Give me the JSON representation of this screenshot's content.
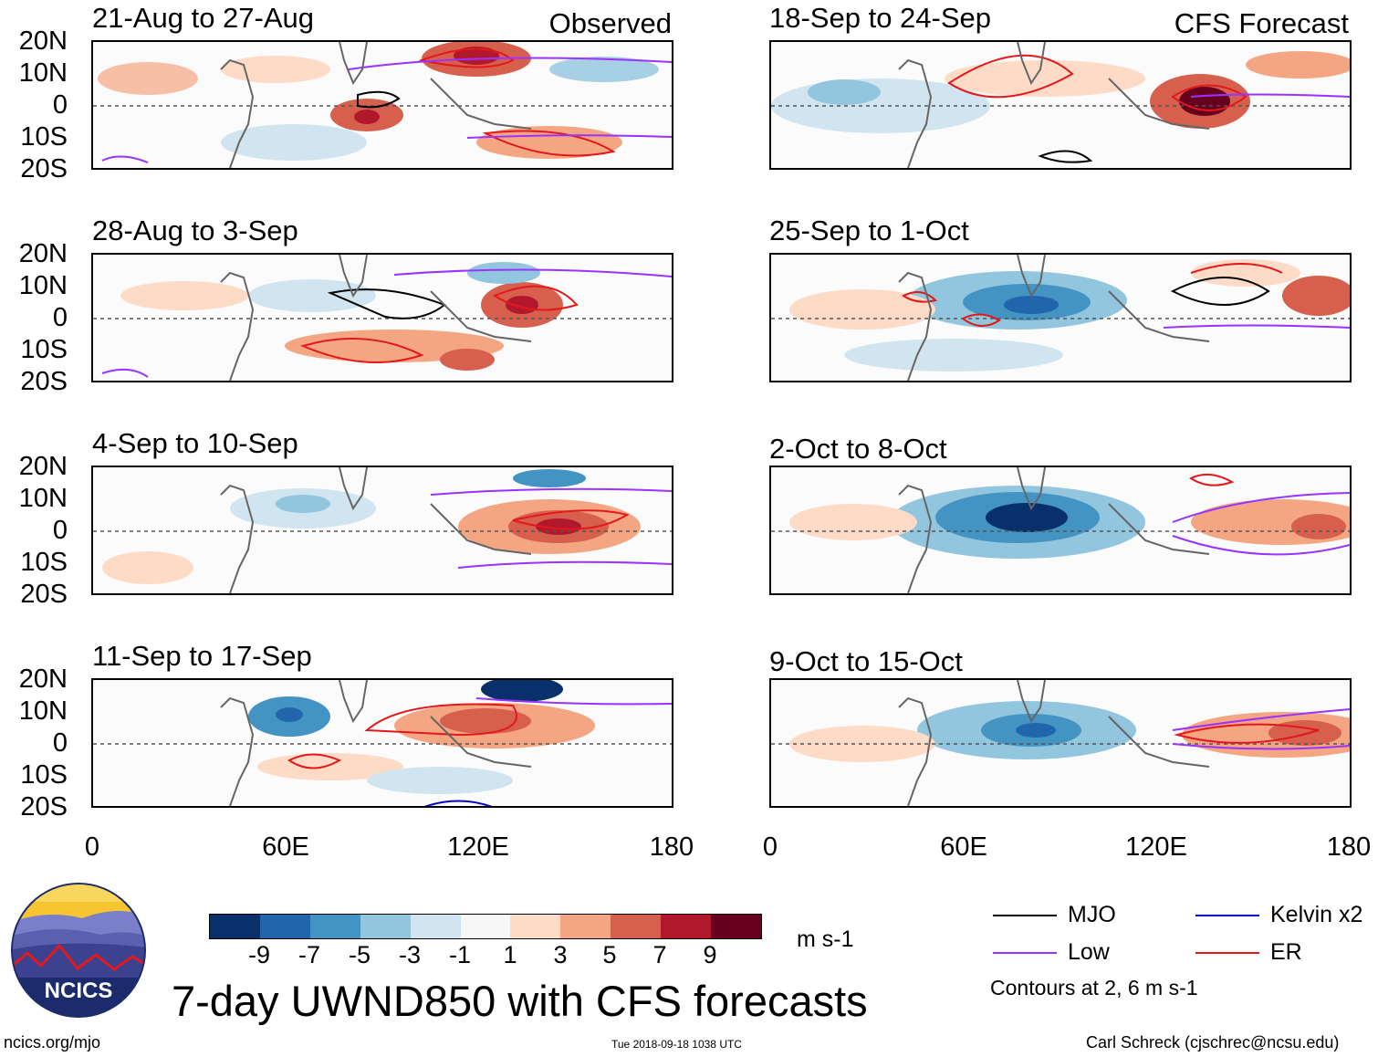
{
  "figure": {
    "title": "7-day UWND850 with CFS forecasts",
    "observed_label": "Observed",
    "forecast_label": "CFS Forecast",
    "footer_left": "ncics.org/mjo",
    "footer_center": "Tue 2018-09-18 1038 UTC",
    "footer_right": "Carl Schreck (cjschrec@ncsu.edu)",
    "logo_text": "NCICS"
  },
  "axes": {
    "lat_labels": [
      "20N",
      "10N",
      "0",
      "10S",
      "20S"
    ],
    "lon_labels": [
      "0",
      "60E",
      "120E",
      "180"
    ]
  },
  "panels": [
    {
      "title": "21-Aug to 27-Aug",
      "source": "Observed"
    },
    {
      "title": "28-Aug to 3-Sep",
      "source": "Observed"
    },
    {
      "title": "4-Sep to 10-Sep",
      "source": "Observed"
    },
    {
      "title": "11-Sep to 17-Sep",
      "source": "Observed"
    },
    {
      "title": "18-Sep to 24-Sep",
      "source": "CFS Forecast"
    },
    {
      "title": "25-Sep to 1-Oct",
      "source": "CFS Forecast"
    },
    {
      "title": "2-Oct to 8-Oct",
      "source": "CFS Forecast"
    },
    {
      "title": "9-Oct to 15-Oct",
      "source": "CFS Forecast"
    }
  ],
  "colorbar": {
    "labels": [
      "-9",
      "-7",
      "-5",
      "-3",
      "-1",
      "1",
      "3",
      "5",
      "7",
      "9"
    ],
    "units": "m s-1",
    "colors": [
      "#08306b",
      "#2166ac",
      "#4393c3",
      "#92c5de",
      "#d1e5f0",
      "#f7f7f7",
      "#fddbc7",
      "#f4a582",
      "#d6604d",
      "#b2182b",
      "#67001f"
    ]
  },
  "legend": {
    "items": [
      {
        "label": "MJO",
        "color": "#000000"
      },
      {
        "label": "Kelvin x2",
        "color": "#0000cc"
      },
      {
        "label": "Low",
        "color": "#9933ff"
      },
      {
        "label": "ER",
        "color": "#e3181b"
      }
    ],
    "note": "Contours at 2, 6 m s-1"
  }
}
